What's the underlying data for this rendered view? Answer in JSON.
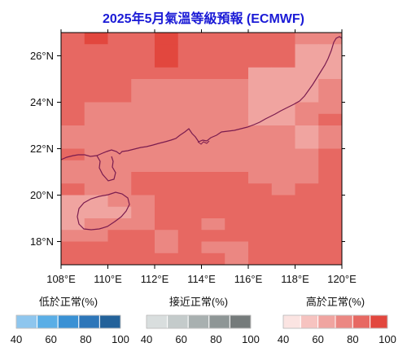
{
  "title": "2025年5月氣溫等級預報 (ECMWF)",
  "chart_data": {
    "type": "heatmap",
    "title": "2025年5月氣溫等級預報 (ECMWF)",
    "x_ticks": [
      "108°E",
      "110°E",
      "112°E",
      "114°E",
      "116°E",
      "118°E",
      "120°E"
    ],
    "y_ticks": [
      "26°N",
      "24°N",
      "22°N",
      "20°N",
      "18°N"
    ],
    "x_range": [
      108,
      120
    ],
    "y_range": [
      17,
      27
    ],
    "cell_lon_edges": [
      108,
      109,
      110,
      111,
      112,
      113,
      114,
      115,
      116,
      117,
      118,
      119,
      120
    ],
    "cell_lat_edges": [
      27,
      26.5,
      26,
      25.5,
      25,
      24.5,
      24,
      23.5,
      23,
      22.5,
      22,
      21.5,
      21,
      20.5,
      20,
      19.5,
      19,
      18.5,
      18,
      17.5,
      17
    ],
    "grid_levels": [
      [
        4,
        5,
        4,
        4,
        5,
        4,
        4,
        4,
        4,
        4,
        3,
        3
      ],
      [
        4,
        4,
        4,
        4,
        5,
        4,
        4,
        4,
        4,
        4,
        2,
        2
      ],
      [
        4,
        4,
        4,
        4,
        5,
        4,
        4,
        4,
        4,
        4,
        2,
        2
      ],
      [
        4,
        4,
        4,
        4,
        4,
        4,
        4,
        4,
        2,
        2,
        2,
        2
      ],
      [
        4,
        4,
        4,
        3,
        3,
        3,
        3,
        3,
        2,
        2,
        2,
        3
      ],
      [
        4,
        4,
        4,
        3,
        3,
        3,
        3,
        3,
        2,
        2,
        2,
        3
      ],
      [
        4,
        3,
        3,
        3,
        3,
        3,
        3,
        3,
        2,
        2,
        3,
        3
      ],
      [
        4,
        3,
        3,
        3,
        3,
        3,
        3,
        3,
        2,
        2,
        3,
        4
      ],
      [
        3,
        3,
        3,
        3,
        3,
        3,
        3,
        3,
        3,
        3,
        2,
        3
      ],
      [
        3,
        3,
        3,
        3,
        3,
        3,
        3,
        3,
        3,
        3,
        2,
        3
      ],
      [
        4,
        3,
        3,
        3,
        3,
        3,
        3,
        3,
        3,
        3,
        3,
        4
      ],
      [
        3,
        3,
        3,
        3,
        3,
        3,
        3,
        3,
        3,
        3,
        3,
        4
      ],
      [
        3,
        3,
        3,
        4,
        4,
        4,
        4,
        4,
        3,
        3,
        3,
        4
      ],
      [
        4,
        3,
        3,
        4,
        4,
        4,
        4,
        4,
        4,
        3,
        4,
        4
      ],
      [
        2,
        2,
        3,
        3,
        4,
        4,
        4,
        4,
        4,
        4,
        4,
        4
      ],
      [
        2,
        2,
        2,
        3,
        4,
        4,
        4,
        4,
        4,
        4,
        4,
        4
      ],
      [
        2,
        3,
        3,
        3,
        4,
        4,
        3,
        4,
        4,
        4,
        4,
        4
      ],
      [
        3,
        3,
        4,
        4,
        3,
        4,
        4,
        4,
        4,
        4,
        4,
        4
      ],
      [
        4,
        4,
        4,
        4,
        3,
        4,
        3,
        3,
        4,
        4,
        4,
        4
      ],
      [
        4,
        4,
        4,
        4,
        4,
        4,
        4,
        3,
        4,
        4,
        4,
        4
      ]
    ],
    "colorbars": [
      {
        "title": "低於正常(%)",
        "ticks": [
          "40",
          "60",
          "80",
          "100"
        ],
        "colors": [
          "#8ec6ee",
          "#5aaee6",
          "#3a91d4",
          "#2d76b9",
          "#23629a"
        ]
      },
      {
        "title": "接近正常(%)",
        "ticks": [
          "40",
          "60",
          "80",
          "100"
        ],
        "colors": [
          "#d9dede",
          "#c4cbcb",
          "#a8b0b0",
          "#8e9696",
          "#757b7b"
        ]
      },
      {
        "title": "高於正常(%)",
        "ticks": [
          "40",
          "60",
          "80",
          "100"
        ],
        "colors": [
          "#fbe4e2",
          "#f6c3c0",
          "#f0a4a0",
          "#eb8782",
          "#e76862",
          "#e2473e"
        ]
      }
    ],
    "high_colors": [
      "#fbe4e2",
      "#f6c3c0",
      "#f0a4a0",
      "#eb8782",
      "#e76862",
      "#e2473e"
    ],
    "coast_color": "#7a1c4f"
  }
}
